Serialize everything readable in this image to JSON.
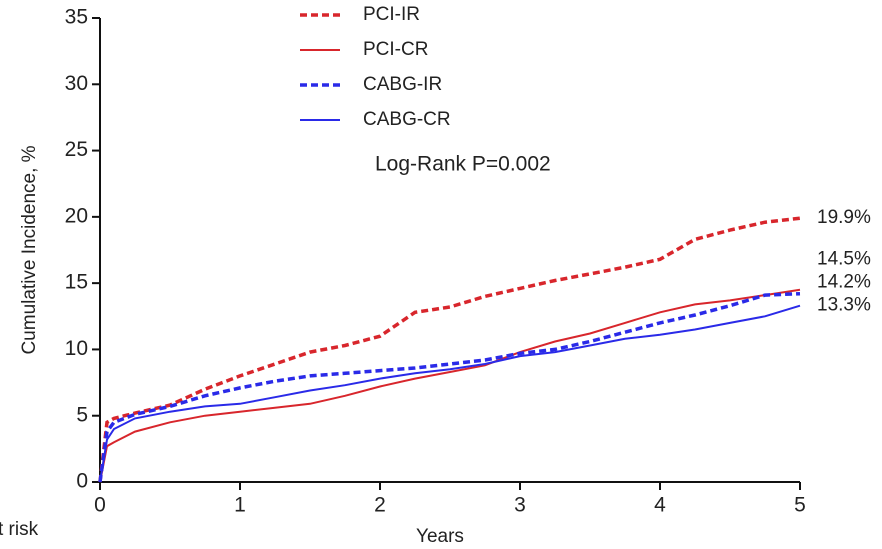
{
  "chart_data": {
    "type": "line",
    "y_label": "Cumulative Incidence, %",
    "x_label": "Years",
    "annotation": "Log-Rank P=0.002",
    "side_text": "t risk",
    "x": [
      0,
      0.05,
      0.1,
      0.25,
      0.5,
      0.75,
      1,
      1.25,
      1.5,
      1.75,
      2,
      2.25,
      2.5,
      2.75,
      3,
      3.25,
      3.5,
      3.75,
      4,
      4.25,
      4.5,
      4.75,
      5
    ],
    "series": [
      {
        "name": "PCI-IR",
        "color": "#d8262c",
        "dash": true,
        "end_label": "19.9%",
        "values": [
          0,
          4.5,
          4.8,
          5.2,
          5.8,
          7.0,
          8.0,
          8.9,
          9.8,
          10.3,
          11.0,
          12.8,
          13.2,
          14.0,
          14.6,
          15.2,
          15.7,
          16.2,
          16.8,
          18.3,
          19.0,
          19.6,
          19.9
        ]
      },
      {
        "name": "PCI-CR",
        "color": "#d8262c",
        "dash": false,
        "end_label": "14.5%",
        "values": [
          0,
          2.7,
          3.0,
          3.8,
          4.5,
          5.0,
          5.3,
          5.6,
          5.9,
          6.5,
          7.2,
          7.8,
          8.3,
          8.8,
          9.8,
          10.6,
          11.2,
          12.0,
          12.8,
          13.4,
          13.7,
          14.1,
          14.5
        ]
      },
      {
        "name": "CABG-IR",
        "color": "#2a2ae8",
        "dash": true,
        "end_label": "14.2%",
        "values": [
          0,
          3.8,
          4.5,
          5.1,
          5.7,
          6.5,
          7.1,
          7.6,
          8.0,
          8.2,
          8.4,
          8.6,
          8.9,
          9.2,
          9.7,
          10.0,
          10.6,
          11.3,
          12.0,
          12.6,
          13.3,
          14.1,
          14.2
        ]
      },
      {
        "name": "CABG-CR",
        "color": "#2a2ae8",
        "dash": false,
        "end_label": "13.3%",
        "values": [
          0,
          3.2,
          4.0,
          4.8,
          5.3,
          5.7,
          5.9,
          6.4,
          6.9,
          7.3,
          7.8,
          8.2,
          8.5,
          8.9,
          9.5,
          9.8,
          10.3,
          10.8,
          11.1,
          11.5,
          12.0,
          12.5,
          13.3
        ]
      }
    ],
    "xlim": [
      0,
      5
    ],
    "xticks": [
      0,
      1,
      2,
      3,
      4,
      5
    ],
    "ylim": [
      0,
      35
    ],
    "yticks": [
      0,
      5,
      10,
      15,
      20,
      25,
      30,
      35
    ],
    "grid": false,
    "legend": "top-center"
  }
}
